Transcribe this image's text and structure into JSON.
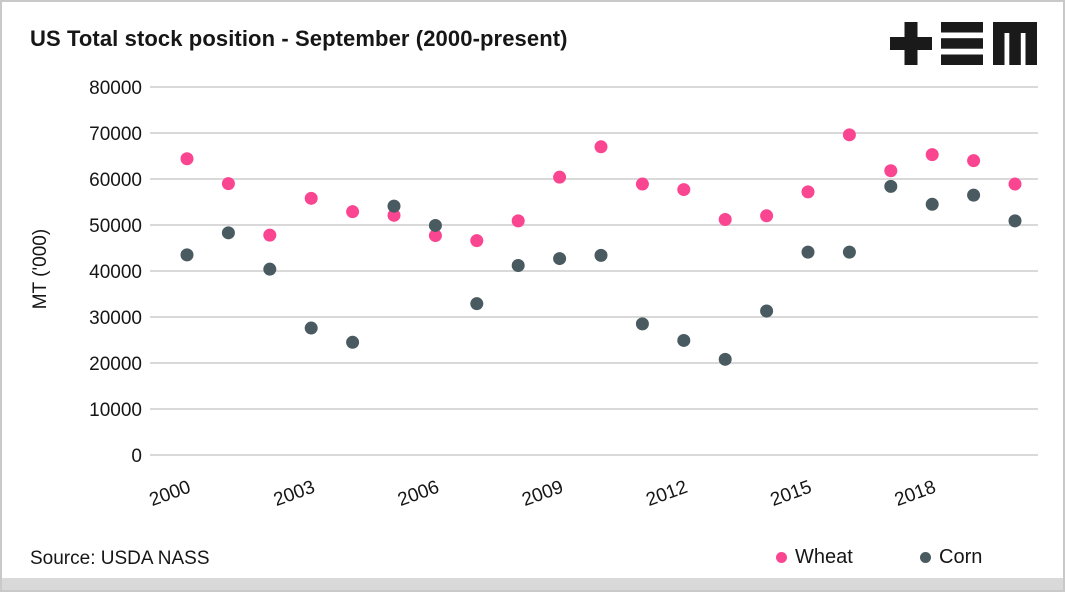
{
  "header": {
    "title": "US Total stock position - September (2000-present)",
    "logo_name": "tem-logo"
  },
  "footer": {
    "source": "Source: USDA NASS"
  },
  "legend": {
    "position": "bottom-right",
    "items": [
      {
        "label": "Wheat",
        "color": "#fa4691"
      },
      {
        "label": "Corn",
        "color": "#4a5a61"
      }
    ]
  },
  "colors": {
    "wheat": "#fa4691",
    "corn": "#4a5a61",
    "gridline": "#d9d9d9",
    "text": "#161616",
    "logo": "#1a1a1a",
    "frame_border": "#c9c9c9",
    "bottom_strip": "#d9d9d9"
  },
  "chart_data": {
    "type": "scatter",
    "title": "US Total stock position - September (2000-present)",
    "xlabel": "",
    "ylabel": "MT ('000)",
    "x": [
      2000,
      2001,
      2002,
      2003,
      2004,
      2005,
      2006,
      2007,
      2008,
      2009,
      2010,
      2011,
      2012,
      2013,
      2014,
      2015,
      2016,
      2017,
      2018,
      2019,
      2020
    ],
    "series": [
      {
        "name": "Wheat",
        "color": "#fa4691",
        "values": [
          64400,
          59000,
          47800,
          55800,
          52900,
          52100,
          47700,
          46600,
          50900,
          60400,
          67000,
          58900,
          57700,
          51200,
          52000,
          57200,
          69600,
          61800,
          65300,
          64000,
          58900
        ]
      },
      {
        "name": "Corn",
        "color": "#4a5a61",
        "values": [
          43500,
          48300,
          40400,
          27600,
          24500,
          54100,
          49900,
          32900,
          41200,
          42700,
          43400,
          28500,
          24900,
          20800,
          31300,
          44100,
          44100,
          58400,
          54500,
          56500,
          50900
        ]
      }
    ],
    "ylim": [
      0,
      80000
    ],
    "yticks": [
      0,
      10000,
      20000,
      30000,
      40000,
      50000,
      60000,
      70000,
      80000
    ],
    "xticks": [
      2000,
      2003,
      2006,
      2009,
      2012,
      2015,
      2018
    ],
    "grid": "horizontal",
    "legend_position": "bottom-right",
    "source": "Source: USDA NASS"
  }
}
